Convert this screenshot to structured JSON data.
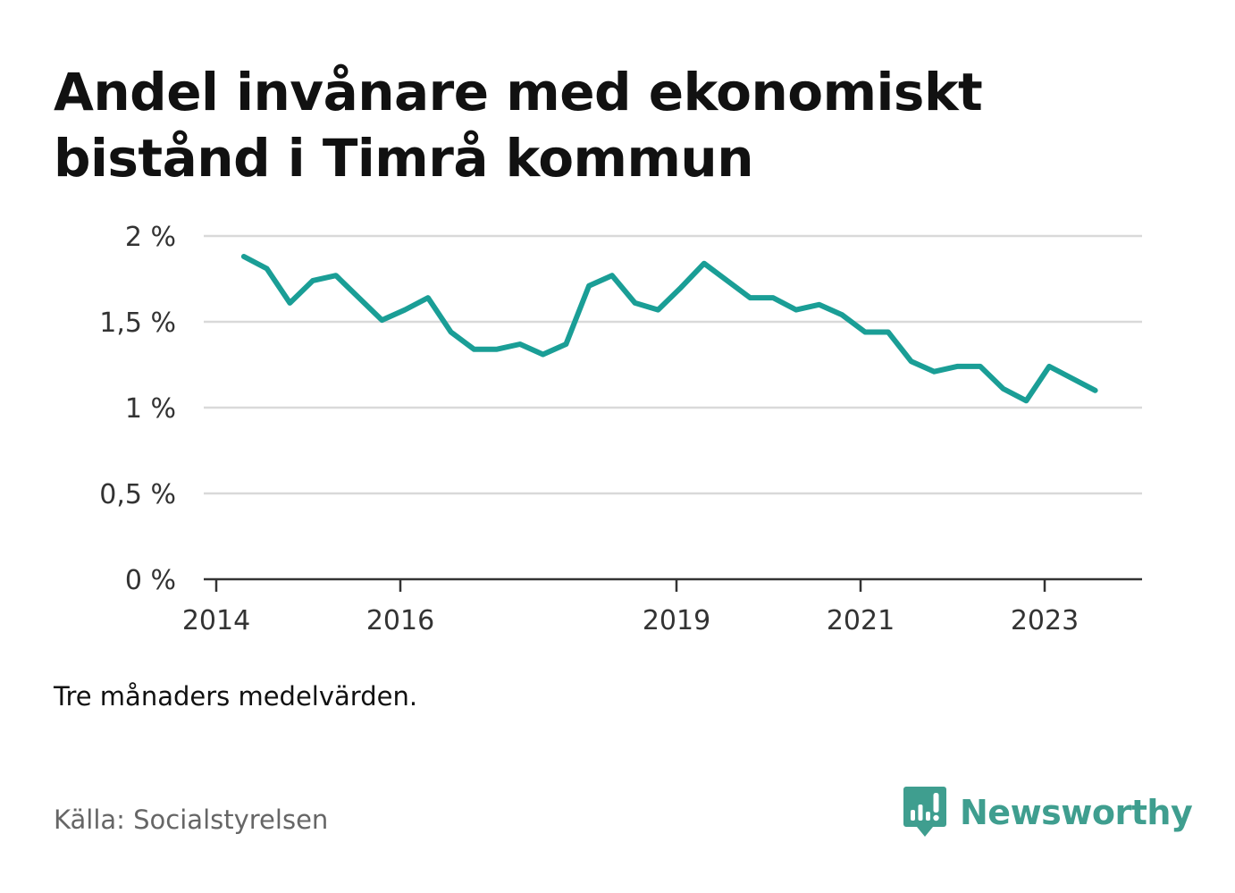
{
  "title": "Andel invånare med ekonomiskt bistånd i Timrå kommun",
  "note": "Tre månaders medelvärden.",
  "source": "Källa: Socialstyrelsen",
  "brand": {
    "name": "Newsworthy",
    "icon": "bar-chart-speech-bubble-icon",
    "color": "#3f9e8f"
  },
  "chart_data": {
    "type": "line",
    "line_color": "#1a9e96",
    "grid": true,
    "ylim": [
      0,
      2
    ],
    "yticks": [
      0,
      0.5,
      1,
      1.5,
      2
    ],
    "ytick_labels": [
      "0 %",
      "0,5 %",
      "1 %",
      "1,5 %",
      "2 %"
    ],
    "xticks": [
      2014,
      2016,
      2019,
      2021,
      2023
    ],
    "xtick_labels": [
      "2014",
      "2016",
      "2019",
      "2021",
      "2023"
    ],
    "xlim": [
      2014,
      2024.05
    ],
    "series": [
      {
        "x": [
          2014.3,
          2014.55,
          2014.8,
          2015.05,
          2015.3,
          2015.55,
          2015.8,
          2016.05,
          2016.3,
          2016.55,
          2016.8,
          2017.05,
          2017.3,
          2017.55,
          2017.8,
          2018.05,
          2018.3,
          2018.55,
          2018.8,
          2019.05,
          2019.3,
          2019.55,
          2019.8,
          2020.05,
          2020.3,
          2020.55,
          2020.8,
          2021.05,
          2021.3,
          2021.55,
          2021.8,
          2022.05,
          2022.3,
          2022.55,
          2022.8,
          2023.05,
          2023.3,
          2023.55
        ],
        "values": [
          1.88,
          1.81,
          1.61,
          1.74,
          1.77,
          1.64,
          1.51,
          1.57,
          1.64,
          1.44,
          1.34,
          1.34,
          1.37,
          1.31,
          1.37,
          1.71,
          1.77,
          1.61,
          1.57,
          1.7,
          1.84,
          1.74,
          1.64,
          1.64,
          1.57,
          1.6,
          1.54,
          1.44,
          1.44,
          1.27,
          1.21,
          1.24,
          1.24,
          1.11,
          1.04,
          1.24,
          1.17,
          1.1
        ]
      }
    ]
  }
}
